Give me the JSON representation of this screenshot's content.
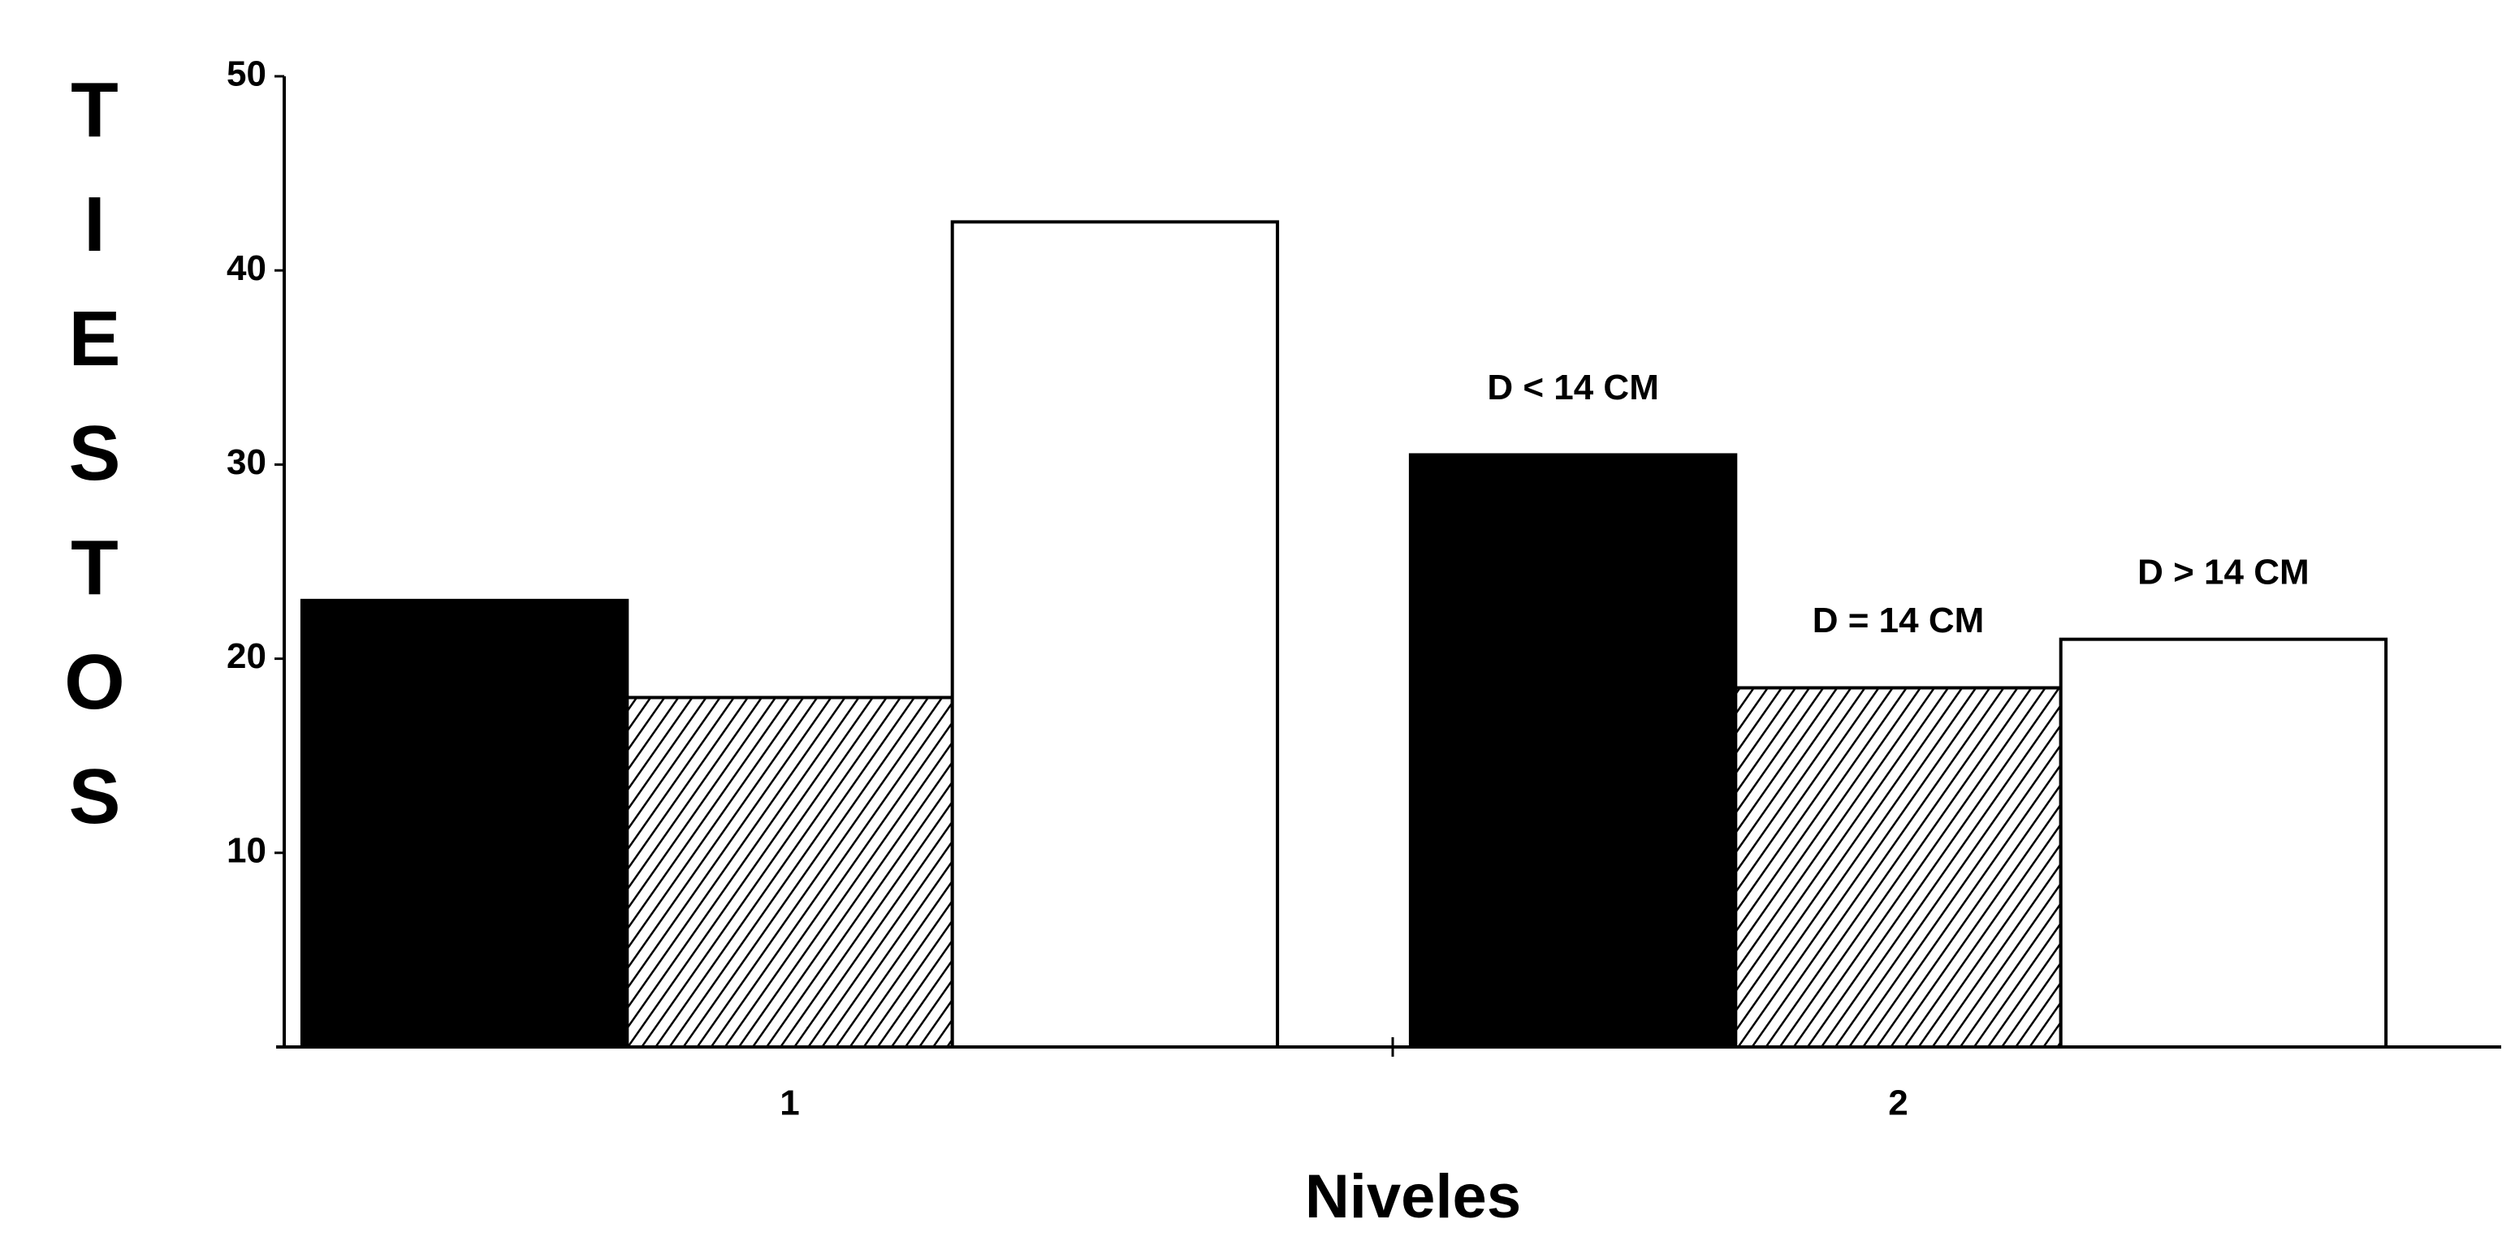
{
  "chart_data": {
    "type": "bar",
    "y_label": "TIESTOS",
    "x_label": "Niveles",
    "categories": [
      "1",
      "2"
    ],
    "series": [
      {
        "name": "D < 14 CM",
        "color": "#000000",
        "values": [
          23,
          30.5
        ]
      },
      {
        "name": "D = 14 CM",
        "color": "#000000",
        "pattern": "diagonal",
        "values": [
          18,
          18.5
        ]
      },
      {
        "name": "D > 14 CM",
        "color": "#ffffff",
        "values": [
          42.5,
          21
        ]
      }
    ],
    "ylim": [
      0,
      50
    ],
    "yticks": [
      10,
      20,
      30,
      40,
      50
    ],
    "grid": false
  }
}
